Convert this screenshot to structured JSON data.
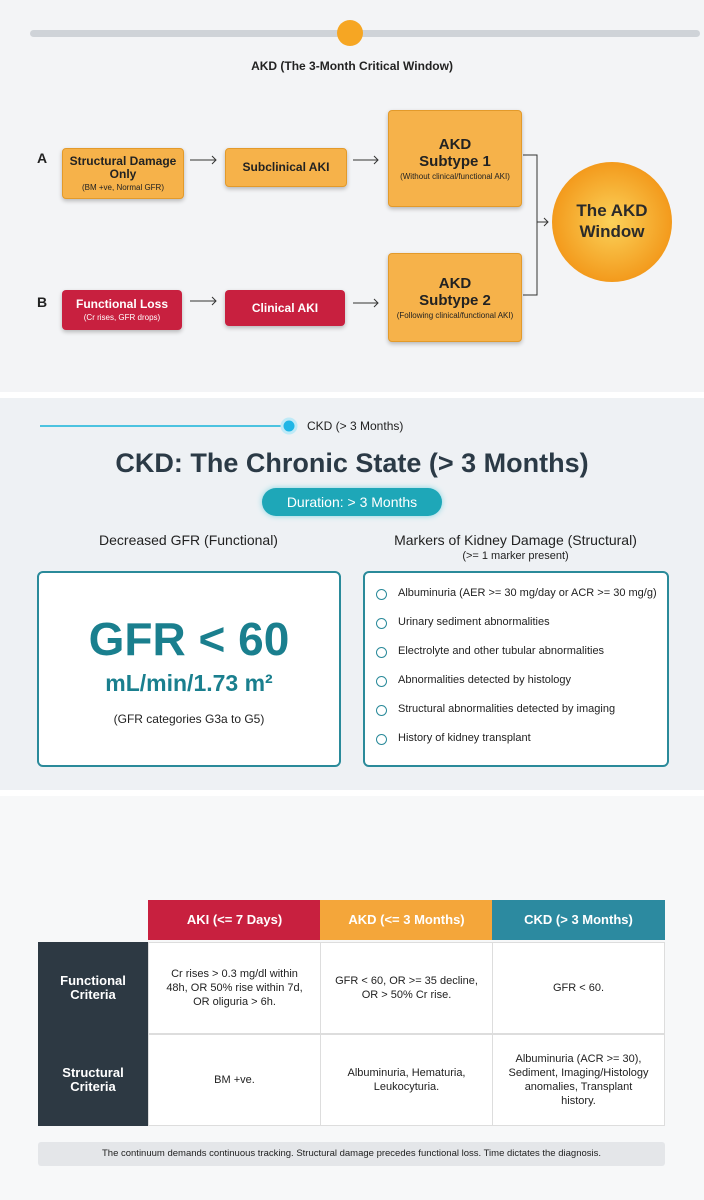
{
  "akd_section": {
    "title": "AKD (The 3-Month Critical Window)",
    "row_a": {
      "label": "A",
      "start": {
        "title": "Structural Damage Only",
        "sub": "(BM +ve, Normal GFR)"
      },
      "mid": "Subclinical AKI",
      "subtype": {
        "title": "AKD Subtype 1",
        "sub": "(Without clinical/functional AKI)"
      }
    },
    "row_b": {
      "label": "B",
      "start": {
        "title": "Functional Loss",
        "sub": "(Cr rises, GFR drops)"
      },
      "mid": "Clinical AKI",
      "subtype": {
        "title": "AKD Subtype 2",
        "sub": "(Following clinical/functional AKI)"
      }
    },
    "window": "The AKD Window"
  },
  "ckd_section": {
    "timeline_label": "CKD (> 3 Months)",
    "title": "CKD: The Chronic State (> 3 Months)",
    "badge": "Duration: > 3 Months",
    "left_heading": "Decreased GFR (Functional)",
    "gfr": "GFR < 60",
    "unit": "mL/min/1.73 m²",
    "note": "(GFR categories G3a to G5)",
    "right_heading": "Markers of Kidney Damage (Structural)",
    "right_sub": "(>= 1 marker present)",
    "markers": [
      "Albuminuria (AER >= 30 mg/day or ACR >= 30 mg/g)",
      "Urinary sediment abnormalities",
      "Electrolyte and other tubular abnormalities",
      "Abnormalities detected by histology",
      "Structural abnormalities detected by imaging",
      "History of kidney transplant"
    ]
  },
  "table": {
    "columns": [
      "AKI (<= 7 Days)",
      "AKD (<= 3 Months)",
      "CKD (> 3 Months)"
    ],
    "rows": [
      {
        "header": "Functional Criteria",
        "cells": [
          "Cr rises > 0.3 mg/dl within 48h, OR 50% rise within 7d, OR oliguria > 6h.",
          "GFR < 60, OR >= 35 decline, OR > 50% Cr rise.",
          "GFR < 60."
        ]
      },
      {
        "header": "Structural Criteria",
        "cells": [
          "BM +ve.",
          "Albuminuria, Hematuria, Leukocyturia.",
          "Albuminuria (ACR >= 30), Sediment, Imaging/Histology anomalies, Transplant history."
        ]
      }
    ],
    "footer": "The continuum demands continuous tracking. Structural damage precedes functional loss. Time dictates the diagnosis."
  }
}
